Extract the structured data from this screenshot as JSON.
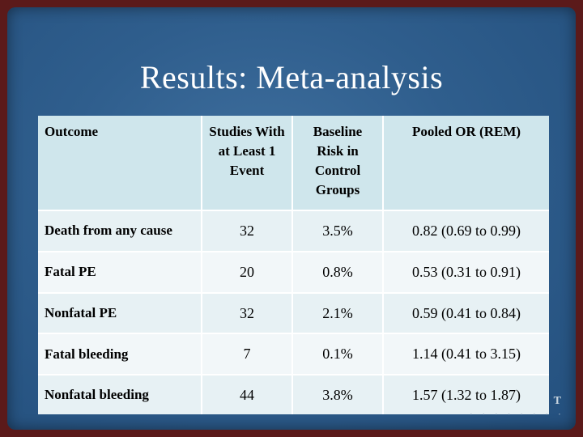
{
  "slide": {
    "title": "Results: Meta-analysis"
  },
  "table": {
    "headers": [
      "Outcome",
      "Studies With at Least 1 Event",
      "Baseline Risk in Control Groups",
      "Pooled OR (REM)"
    ],
    "rows": [
      [
        "Death from any cause",
        "32",
        "3.5%",
        "0.82 (0.69 to 0.99)"
      ],
      [
        "Fatal PE",
        "20",
        "0.8%",
        "0.53 (0.31 to 0.91)"
      ],
      [
        "Nonfatal PE",
        "32",
        "2.1%",
        "0.59 (0.41 to 0.84)"
      ],
      [
        "Fatal bleeding",
        "7",
        "0.1%",
        "1.14 (0.41 to 3.15)"
      ],
      [
        "Nonfatal bleeding",
        "44",
        "3.8%",
        "1.57 (1.32 to 1.87)"
      ]
    ]
  },
  "logo": {
    "mark": "T"
  }
}
